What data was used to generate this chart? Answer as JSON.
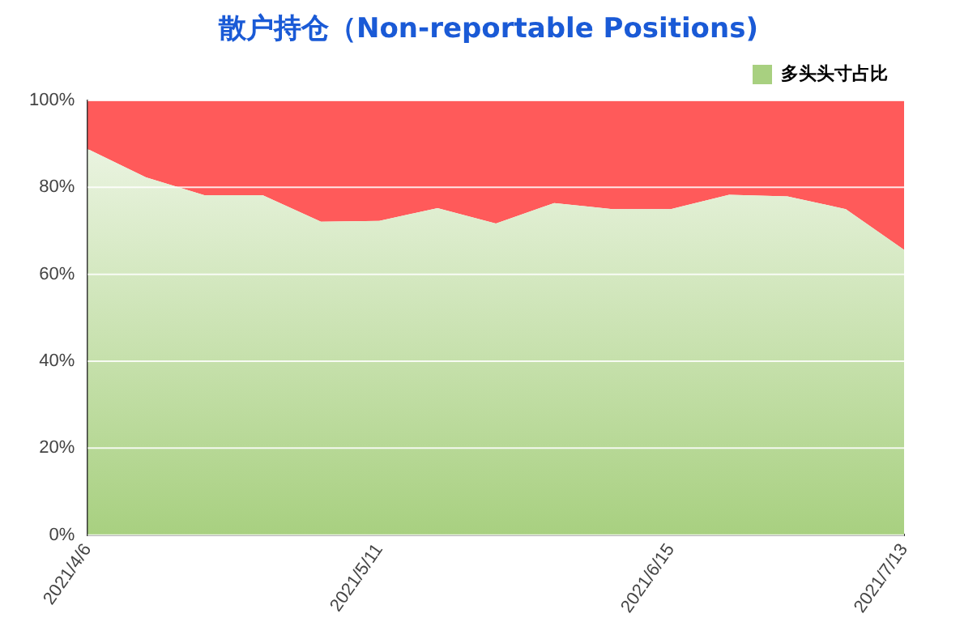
{
  "chart_data": {
    "type": "area",
    "title": "散户持仓（Non-reportable Positions)",
    "stacked": true,
    "categories": [
      "2021/4/6",
      null,
      null,
      null,
      null,
      "2021/5/11",
      null,
      null,
      null,
      null,
      "2021/6/15",
      null,
      null,
      null,
      "2021/7/13"
    ],
    "series": [
      {
        "name": "多头头寸占比",
        "color": "#a8d080",
        "values": [
          88.8,
          82.3,
          78.2,
          78.2,
          72.1,
          72.3,
          75.2,
          71.7,
          76.4,
          75,
          75,
          78.3,
          77.9,
          75,
          65.6
        ]
      },
      {
        "color": "#ff5a5a",
        "values": [
          11.2,
          17.7,
          21.8,
          21.8,
          27.9,
          27.7,
          24.8,
          28.3,
          23.6,
          25,
          25,
          21.7,
          22.1,
          25,
          34.4
        ]
      }
    ],
    "ylim": [
      0,
      100
    ],
    "yticks": [
      {
        "value": 0,
        "label": "0%"
      },
      {
        "value": 20,
        "label": "20%"
      },
      {
        "value": 40,
        "label": "40%"
      },
      {
        "value": 60,
        "label": "60%"
      },
      {
        "value": 80,
        "label": "80%"
      },
      {
        "value": 100,
        "label": "100%"
      }
    ],
    "grid": "y",
    "legend": "top right"
  }
}
